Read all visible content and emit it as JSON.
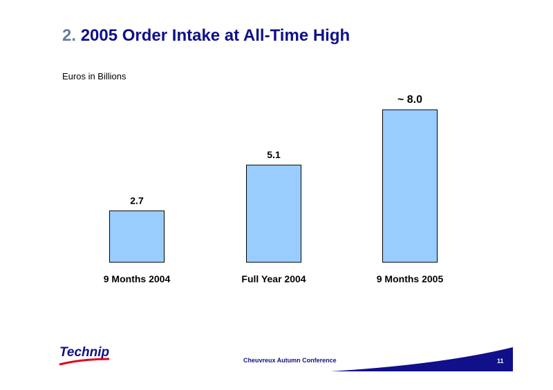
{
  "slide": {
    "title_number": "2.",
    "title_text": "2005 Order Intake at All-Time High",
    "unit_label": "Euros in Billions"
  },
  "chart_data": {
    "type": "bar",
    "categories": [
      "9 Months 2004",
      "Full Year 2004",
      "9 Months 2005"
    ],
    "values": [
      2.7,
      5.1,
      8.0
    ],
    "data_labels": [
      "2.7",
      "5.1",
      "~ 8.0"
    ],
    "title": "2005 Order Intake at All-Time High",
    "ylabel": "Euros in Billions",
    "ylim": [
      0,
      8.0
    ],
    "bar_color": "#99ccff",
    "bar_outline": "#000000"
  },
  "footer": {
    "logo_text": "Technip",
    "conference": "Cheuvreux Autumn Conference",
    "page_number": "11",
    "accent_color": "#10108a",
    "logo_red": "#e3001b"
  }
}
